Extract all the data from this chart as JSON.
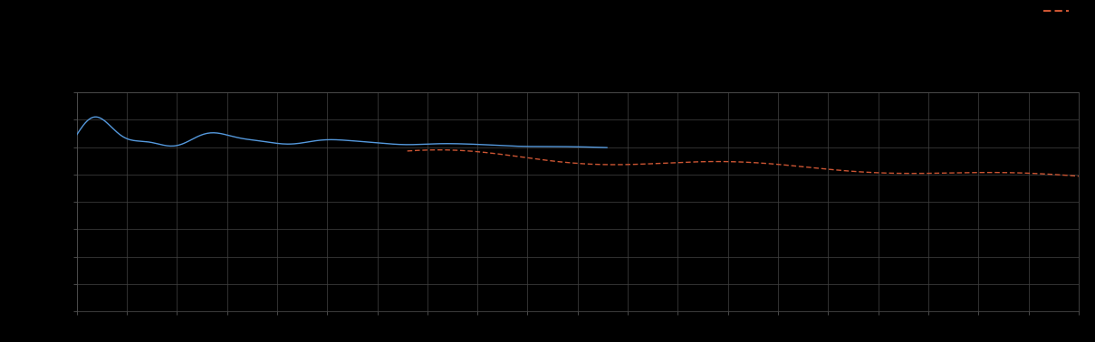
{
  "background_color": "#000000",
  "plot_bg_color": "#000000",
  "grid_color": "#444444",
  "line1_color": "#5599dd",
  "line2_color": "#cc5533",
  "xlim": [
    0,
    100
  ],
  "ylim": [
    0,
    10
  ],
  "figsize": [
    12.09,
    3.78
  ],
  "dpi": 100,
  "n_xticks": 21,
  "n_yticks": 9
}
